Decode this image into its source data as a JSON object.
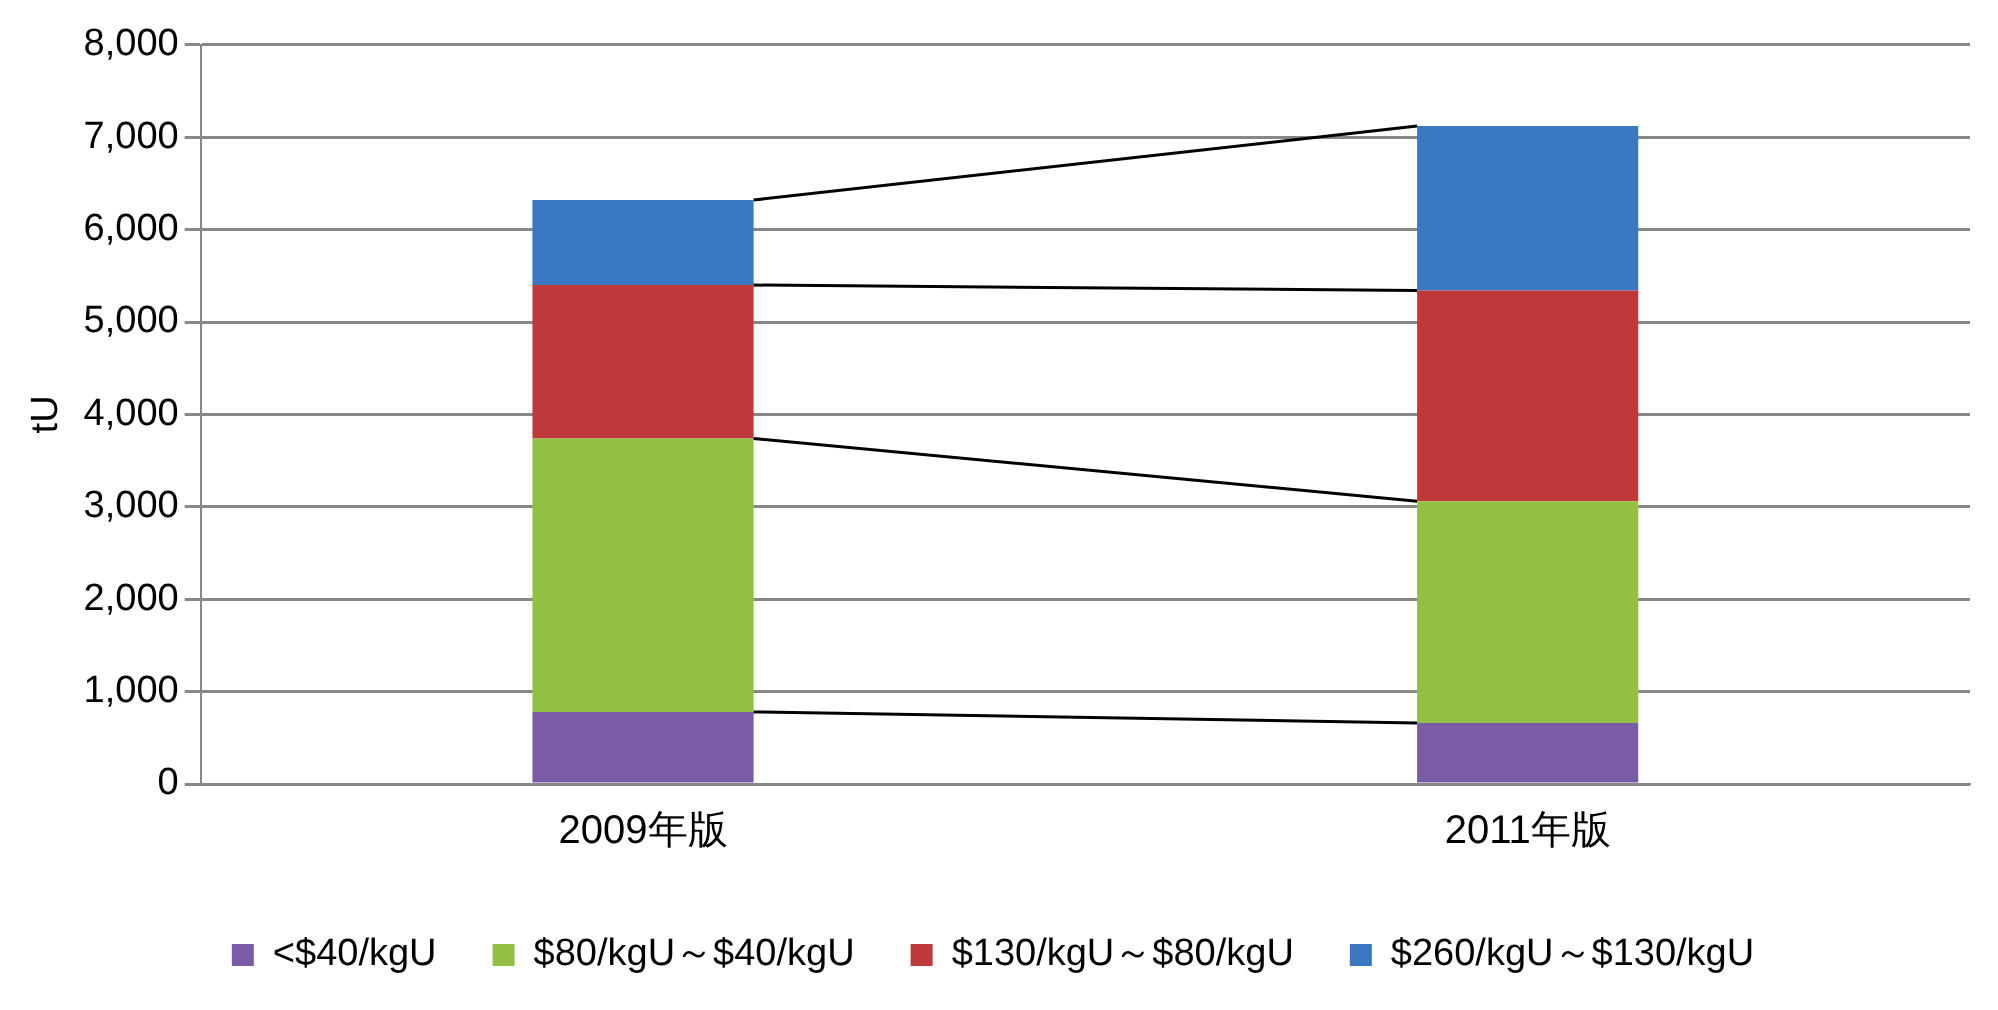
{
  "chart_data": {
    "type": "bar",
    "stacked": true,
    "ylabel": "tU",
    "categories": [
      "2009年版",
      "2011年版"
    ],
    "series": [
      {
        "name": "<$40/kgU",
        "color": "#7b5aa6",
        "values": [
          780,
          660
        ]
      },
      {
        "name": "$80/kgU～$40/kgU",
        "color": "#93bf45",
        "values": [
          2960,
          2400
        ]
      },
      {
        "name": "$130/kgU～$80/kgU",
        "color": "#c0393a",
        "values": [
          1660,
          2280
        ]
      },
      {
        "name": "$260/kgU～$130/kgU",
        "color": "#3a78c2",
        "values": [
          920,
          1780
        ]
      }
    ],
    "ylim": [
      0,
      8000
    ],
    "yticks": [
      {
        "value": 0,
        "label": "0"
      },
      {
        "value": 1000,
        "label": "1,000"
      },
      {
        "value": 2000,
        "label": "2,000"
      },
      {
        "value": 3000,
        "label": "3,000"
      },
      {
        "value": 4000,
        "label": "4,000"
      },
      {
        "value": 5000,
        "label": "5,000"
      },
      {
        "value": 6000,
        "label": "6,000"
      },
      {
        "value": 7000,
        "label": "7,000"
      },
      {
        "value": 8000,
        "label": "8,000"
      }
    ],
    "grid": "y",
    "legend": "bottom"
  }
}
